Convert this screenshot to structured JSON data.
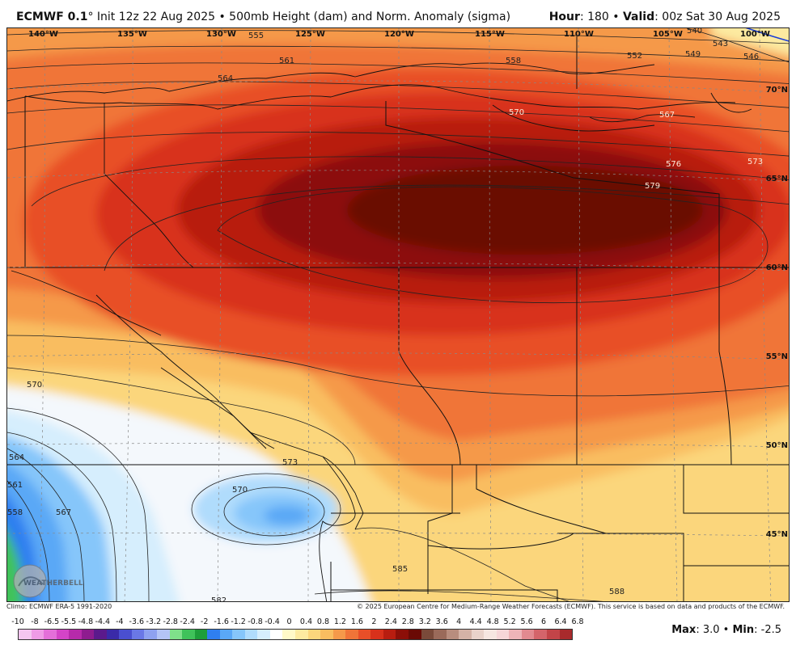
{
  "header": {
    "model": "ECMWF 0.1",
    "degree_sym": "°",
    "init": " Init 12z 22 Aug 2025 • 500mb Height (dam) and Norm. Anomaly (sigma)",
    "hour_label": "Hour",
    "hour_value": ": 180 • ",
    "valid_label": "Valid",
    "valid_value": ": 00z Sat 30 Aug 2025"
  },
  "map": {
    "lon_labels": [
      "140°W",
      "135°W",
      "130°W",
      "125°W",
      "120°W",
      "115°W",
      "110°W",
      "105°W",
      "100°W"
    ],
    "lat_labels": [
      "70°N",
      "65°N",
      "60°N",
      "55°N",
      "50°N",
      "45°N"
    ],
    "contour_labels": [
      "555",
      "561",
      "564",
      "558",
      "570",
      "552",
      "549",
      "546",
      "543",
      "540",
      "573",
      "576",
      "579",
      "567",
      "570",
      "561",
      "558",
      "564",
      "573",
      "570",
      "567",
      "585",
      "588",
      "582"
    ],
    "watermark": "WEATHERBELL"
  },
  "footer": {
    "climo": "Climo: ECMWF ERA-5 1991-2020",
    "copyright": "© 2025 European Centre for Medium-Range Weather Forecasts (ECMWF). This service is based on data and products of the ECMWF."
  },
  "scale": {
    "labels": [
      "-10",
      "-8",
      "-6.5",
      "-5.5",
      "-4.8",
      "-4.4",
      "-4",
      "-3.6",
      "-3.2",
      "-2.8",
      "-2.4",
      "-2",
      "-1.6",
      "-1.2",
      "-0.8",
      "-0.4",
      "0",
      "0.4",
      "0.8",
      "1.2",
      "1.6",
      "2",
      "2.4",
      "2.8",
      "3.2",
      "3.6",
      "4",
      "4.4",
      "4.8",
      "5.2",
      "5.6",
      "6",
      "6.4",
      "6.8"
    ],
    "colors": [
      "#f4c6f0",
      "#ef9be6",
      "#e46fd9",
      "#d444c7",
      "#b72aaa",
      "#8e1c8f",
      "#5b1a8c",
      "#3a2aa8",
      "#4a4fd0",
      "#6a78e6",
      "#8ea1f0",
      "#b4c4f6",
      "#7fe08a",
      "#3fc25a",
      "#1d9e3a",
      "#2f7ff0",
      "#5aa8f6",
      "#86c6fa",
      "#b0dcfc",
      "#d6eefd",
      "#ffffff",
      "#fff9c8",
      "#fdeaa0",
      "#fbd67c",
      "#f9bd60",
      "#f5994a",
      "#f07438",
      "#e84f28",
      "#d8311b",
      "#b81d10",
      "#8c0f08",
      "#6a0a05",
      "#7a4a3a",
      "#9a6a5a",
      "#b88d7e",
      "#d4b2a6",
      "#e9d2ca",
      "#f6e6e1",
      "#f6d6d8",
      "#eeb4b8",
      "#e28a90",
      "#d4646a",
      "#c24448",
      "#a82a2c"
    ]
  },
  "maxmin": {
    "max_label": "Max",
    "max_value": ": 3.0 • ",
    "min_label": "Min",
    "min_value": ": -2.5"
  }
}
